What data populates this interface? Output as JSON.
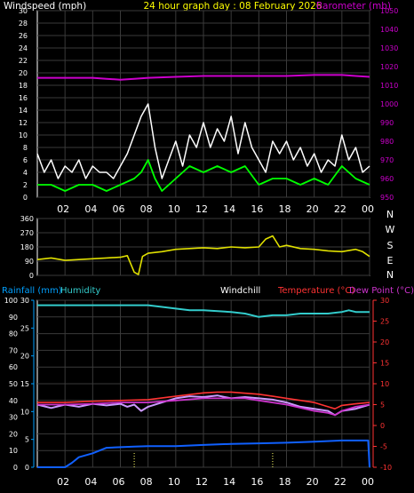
{
  "colors": {
    "background": "#000000",
    "axis": "#ffffff",
    "grid": "#3a3a3a",
    "wind": "#ffffff",
    "wind_avg": "#00ff00",
    "barometer": "#cc00cc",
    "direction": "#e0e000",
    "humidity": "#33cccc",
    "rainfall": "#1060ff",
    "temperature": "#ff3333",
    "dewpoint": "#cc33cc",
    "windchill": "#cc99ff",
    "title": "#ffff00",
    "rain_label": "#00a0ff",
    "marker": "#ffff66"
  },
  "chart_data": [
    {
      "type": "line",
      "title": "24 hour graph day : 08 February 2026",
      "left_label": "Windspeed (mph)",
      "right_label": "Barometer (mb)",
      "x_ticks": [
        "02",
        "04",
        "06",
        "08",
        "10",
        "12",
        "14",
        "16",
        "18",
        "20",
        "22",
        "00"
      ],
      "y_left_ticks": [
        "0",
        "2",
        "4",
        "6",
        "8",
        "10",
        "12",
        "14",
        "16",
        "18",
        "20",
        "22",
        "24",
        "26",
        "28",
        "30"
      ],
      "y_left_range": [
        0,
        30
      ],
      "y_right_ticks": [
        "950",
        "960",
        "970",
        "980",
        "990",
        "1000",
        "1010",
        "1020",
        "1030",
        "1040",
        "1050"
      ],
      "y_right_range": [
        950,
        1050
      ],
      "x_range": [
        0,
        24
      ],
      "grid": true,
      "series": [
        {
          "name": "Barometer",
          "axis": "right",
          "x": [
            0,
            2,
            4,
            5,
            6,
            7,
            8,
            10,
            12,
            14,
            16,
            18,
            20,
            22,
            23,
            24
          ],
          "values": [
            1014,
            1014,
            1014,
            1013.5,
            1013,
            1013.5,
            1014,
            1014.5,
            1015,
            1015,
            1015,
            1015,
            1015.5,
            1015.5,
            1015,
            1014.5
          ]
        },
        {
          "name": "Gust",
          "axis": "left",
          "x": [
            0,
            0.5,
            1,
            1.5,
            2,
            2.5,
            3,
            3.5,
            4,
            4.5,
            5,
            5.5,
            6,
            6.5,
            7,
            7.5,
            8,
            8.5,
            9,
            9.5,
            10,
            10.5,
            11,
            11.5,
            12,
            12.5,
            13,
            13.5,
            14,
            14.5,
            15,
            15.5,
            16,
            16.5,
            17,
            17.5,
            18,
            18.5,
            19,
            19.5,
            20,
            20.5,
            21,
            21.5,
            22,
            22.5,
            23,
            23.5,
            24
          ],
          "values": [
            7,
            4,
            6,
            3,
            5,
            4,
            6,
            3,
            5,
            4,
            4,
            3,
            5,
            7,
            10,
            13,
            15,
            8,
            3,
            6,
            9,
            5,
            10,
            8,
            12,
            8,
            11,
            9,
            13,
            7,
            12,
            8,
            6,
            4,
            9,
            7,
            9,
            6,
            8,
            5,
            7,
            4,
            6,
            5,
            10,
            6,
            8,
            4,
            5
          ]
        },
        {
          "name": "Average speed",
          "axis": "left",
          "x": [
            0,
            1,
            2,
            3,
            4,
            5,
            6,
            7,
            7.5,
            8,
            8.5,
            9,
            10,
            11,
            12,
            13,
            14,
            15,
            16,
            17,
            18,
            19,
            20,
            21,
            22,
            23,
            24
          ],
          "values": [
            2,
            2,
            1,
            2,
            2,
            1,
            2,
            3,
            4,
            6,
            3,
            1,
            3,
            5,
            4,
            5,
            4,
            5,
            2,
            3,
            3,
            2,
            3,
            2,
            5,
            3,
            2
          ]
        }
      ]
    },
    {
      "type": "line",
      "right_labels": [
        "N",
        "W",
        "S",
        "E",
        "N"
      ],
      "x_ticks": [
        "02",
        "04",
        "06",
        "08",
        "10",
        "12",
        "14",
        "16",
        "18",
        "20",
        "22",
        "00"
      ],
      "y_ticks": [
        "0",
        "90",
        "180",
        "270",
        "360"
      ],
      "y_range": [
        0,
        360
      ],
      "x_range": [
        0,
        24
      ],
      "grid": true,
      "series": [
        {
          "name": "Wind direction",
          "x": [
            0,
            1,
            2,
            3,
            4,
            5,
            6,
            6.5,
            7,
            7.3,
            7.6,
            8,
            9,
            10,
            11,
            12,
            13,
            14,
            15,
            16,
            16.5,
            17,
            17.5,
            18,
            19,
            20,
            21,
            22,
            23,
            23.5,
            24
          ],
          "values": [
            100,
            110,
            95,
            100,
            105,
            110,
            115,
            125,
            20,
            5,
            120,
            140,
            150,
            165,
            170,
            175,
            170,
            180,
            175,
            180,
            230,
            250,
            180,
            190,
            170,
            165,
            155,
            150,
            165,
            150,
            120
          ]
        }
      ]
    },
    {
      "type": "line",
      "left_label": "Rainfall (mm)",
      "humidity_label": "Humidity",
      "windchill_label": "Windchill",
      "temperature_label": "Temperature (°C)",
      "dewpoint_label": "Dew Point (°C)",
      "x_ticks": [
        "02",
        "04",
        "06",
        "08",
        "10",
        "12",
        "14",
        "16",
        "18",
        "20",
        "22",
        "00"
      ],
      "rain_ticks": [
        "0",
        "5",
        "10",
        "15",
        "20",
        "25",
        "30"
      ],
      "rain_range": [
        0,
        30
      ],
      "humidity_ticks": [
        "0",
        "10",
        "20",
        "30",
        "40",
        "50",
        "60",
        "70",
        "80",
        "90",
        "100"
      ],
      "humidity_range": [
        0,
        100
      ],
      "temp_ticks": [
        "-10",
        "-5",
        "0",
        "5",
        "10",
        "15",
        "20",
        "25",
        "30"
      ],
      "temp_range": [
        -10,
        30
      ],
      "x_range": [
        0,
        24
      ],
      "grid": true,
      "series": [
        {
          "name": "Humidity",
          "axis": "humidity",
          "x": [
            0,
            2,
            4,
            6,
            8,
            9,
            10,
            11,
            12,
            14,
            15,
            16,
            17,
            18,
            19,
            20,
            21,
            22,
            22.5,
            23,
            24
          ],
          "values": [
            97,
            97,
            97,
            97,
            97,
            96,
            95,
            94,
            94,
            93,
            92,
            90,
            91,
            91,
            92,
            92,
            92,
            93,
            94,
            93,
            93
          ]
        },
        {
          "name": "Temperature",
          "axis": "temp",
          "x": [
            0,
            2,
            4,
            6,
            8,
            10,
            12,
            13,
            14,
            16,
            17,
            18,
            20,
            21,
            21.5,
            22,
            23,
            24
          ],
          "values": [
            5.5,
            5.5,
            5.8,
            6,
            6.2,
            7,
            7.8,
            8,
            8,
            7.5,
            7,
            6.5,
            5.5,
            4.5,
            4,
            4.8,
            5.2,
            5.5
          ]
        },
        {
          "name": "Dew Point",
          "axis": "temp",
          "x": [
            0,
            2,
            4,
            6,
            8,
            10,
            12,
            14,
            15,
            16,
            18,
            20,
            21,
            21.5,
            22,
            23,
            24
          ],
          "values": [
            5,
            5,
            5.2,
            5.5,
            5.5,
            6,
            6.5,
            6.5,
            6.5,
            6,
            5,
            3.5,
            3,
            2.5,
            3.5,
            4.5,
            5
          ]
        },
        {
          "name": "Windchill",
          "axis": "temp",
          "x": [
            0,
            1,
            2,
            3,
            4,
            5,
            6,
            6.5,
            7,
            7.5,
            8,
            9,
            10,
            11,
            12,
            13,
            14,
            15,
            16,
            17,
            18,
            19,
            20,
            21,
            21.5,
            22,
            23,
            24
          ],
          "values": [
            5,
            4.2,
            5,
            4.5,
            5.2,
            4.8,
            5.2,
            4.5,
            5,
            3.5,
            4.5,
            5.5,
            6.5,
            7,
            6.8,
            7.2,
            6.5,
            6.8,
            6.5,
            6.2,
            5.5,
            4.5,
            4,
            3.5,
            2.5,
            3.5,
            4,
            5
          ]
        },
        {
          "name": "Rainfall",
          "axis": "rain",
          "x": [
            0,
            1,
            2,
            2.5,
            3,
            4,
            5,
            7,
            8,
            10,
            12,
            14,
            16,
            18,
            20,
            22,
            23.9,
            24
          ],
          "values": [
            0,
            0,
            0,
            0.8,
            1.8,
            2.5,
            3.5,
            3.7,
            3.8,
            3.8,
            4,
            4.2,
            4.3,
            4.4,
            4.6,
            4.8,
            4.8,
            0
          ]
        }
      ],
      "markers_x": [
        7,
        17
      ]
    }
  ]
}
